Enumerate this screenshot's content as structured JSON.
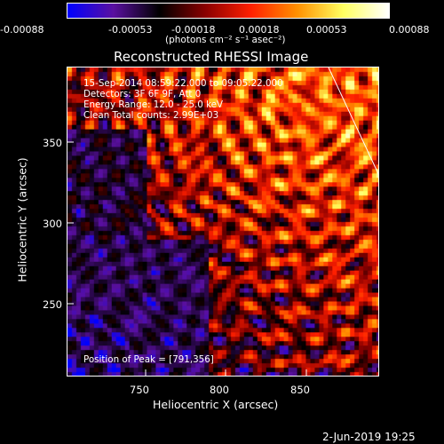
{
  "colorbar": {
    "ticks": [
      "-0.00088",
      "-0.00053",
      "-0.00018",
      "0.00018",
      "0.00053",
      "0.00088"
    ],
    "unit_label": "(photons cm⁻² s⁻¹ asec⁻²)",
    "colormap": [
      "#0000ff",
      "#5a10a0",
      "#000000",
      "#8a0000",
      "#ff2000",
      "#ff9000",
      "#ffff60",
      "#ffffff"
    ]
  },
  "plot": {
    "title": "Reconstructed RHESSI Image",
    "xlabel": "Heliocentric X (arcsec)",
    "ylabel": "Heliocentric Y (arcsec)",
    "x_ticks": [
      "750",
      "800",
      "850"
    ],
    "y_ticks": [
      "350",
      "300",
      "250"
    ],
    "info": {
      "line1": "15-Sep-2014 08:59:22.000 to 09:05:22.000",
      "line2": "Detectors: 3F 6F 9F, Att 0",
      "line3": "Energy Range: 12.0 - 25.0 keV",
      "line4": "Clean      Total counts: 2.99E+03"
    },
    "peak_text": "Position of Peak = [791,356]"
  },
  "timestamp": "2-Jun-2019 19:25",
  "chart_data": {
    "type": "heatmap",
    "title": "Reconstructed RHESSI Image",
    "xlabel": "Heliocentric X (arcsec)",
    "ylabel": "Heliocentric Y (arcsec)",
    "xlim": [
      706,
      895
    ],
    "ylim": [
      204,
      391
    ],
    "color_range": [
      -0.00088,
      0.00088
    ],
    "peak": [
      791,
      356
    ]
  }
}
